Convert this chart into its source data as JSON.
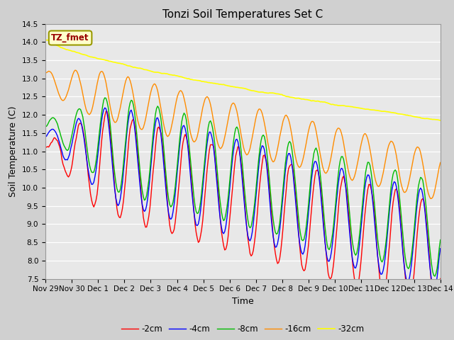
{
  "title": "Tonzi Soil Temperatures Set C",
  "xlabel": "Time",
  "ylabel": "Soil Temperature (C)",
  "ylim": [
    7.5,
    14.5
  ],
  "xlim": [
    0,
    15
  ],
  "annotation": "TZ_fmet",
  "colors": {
    "-2cm": "#ff0000",
    "-4cm": "#0000ff",
    "-8cm": "#00bb00",
    "-16cm": "#ff8c00",
    "-32cm": "#ffff00"
  },
  "legend_labels": [
    "-2cm",
    "-4cm",
    "-8cm",
    "-16cm",
    "-32cm"
  ],
  "fig_facecolor": "#d0d0d0",
  "ax_facecolor": "#e8e8e8",
  "tick_labels": [
    "Nov 29",
    "Nov 30",
    "Dec 1",
    "Dec 2",
    "Dec 3",
    "Dec 4",
    "Dec 5",
    "Dec 6",
    "Dec 7",
    "Dec 8",
    "Dec 9",
    "Dec 10",
    "Dec 11",
    "Dec 12",
    "Dec 13",
    "Dec 14"
  ],
  "tick_positions": [
    0,
    1,
    2,
    3,
    4,
    5,
    6,
    7,
    8,
    9,
    10,
    11,
    12,
    13,
    14,
    15
  ]
}
